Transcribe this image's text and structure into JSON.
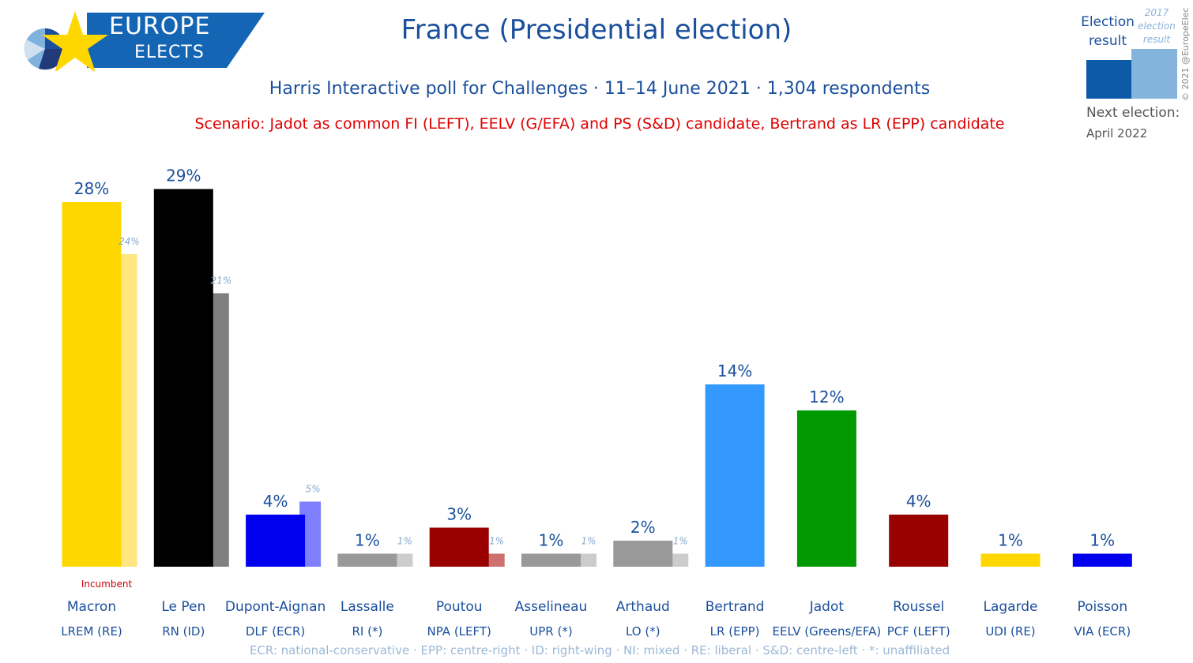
{
  "header": {
    "logo_line1": "EUROPE",
    "logo_line2": "ELECTS",
    "title": "France (Presidential election)",
    "subtitle": "Harris Interactive poll for Challenges · 11–14 June 2021 · 1,304 respondents",
    "scenario": "Scenario: Jadot as common FI (LEFT), EELV (G/EFA) and PS (S&D) candidate, Bertrand as LR (EPP) candidate"
  },
  "legend": {
    "current_line1": "Election",
    "current_line2": "result",
    "previous_line1": "2017",
    "previous_line2": "election",
    "previous_line3": "result",
    "current_color": "#0b5aa8",
    "previous_color": "#84b3dc"
  },
  "next_election": {
    "label": "Next election:",
    "date": "April 2022"
  },
  "copyright": "© 2021 @EuropeElects",
  "footer": "ECR: national-conservative · EPP: centre-right · ID: right-wing · NI: mixed · RE: liberal · S&D: centre-left · *: unaffiliated",
  "chart_data": {
    "type": "bar",
    "title": "France (Presidential election)",
    "ylim": [
      0,
      30
    ],
    "categories": [
      "Macron",
      "Le Pen",
      "Dupont-Aignan",
      "Lassalle",
      "Poutou",
      "Asselineau",
      "Arthaud",
      "Bertrand",
      "Jadot",
      "Roussel",
      "Lagarde",
      "Poisson"
    ],
    "parties": [
      "LREM (RE)",
      "RN (ID)",
      "DLF (ECR)",
      "RI (*)",
      "NPA (LEFT)",
      "UPR (*)",
      "LO (*)",
      "LR (EPP)",
      "EELV (Greens/EFA)",
      "PCF (LEFT)",
      "UDI (RE)",
      "VIA (ECR)"
    ],
    "series": [
      {
        "values": [
          28,
          29,
          4,
          1,
          3,
          1,
          2,
          14,
          12,
          4,
          1,
          1
        ]
      },
      {
        "values": [
          24,
          21,
          5,
          1,
          1,
          1,
          1,
          null,
          null,
          null,
          null,
          null
        ]
      }
    ],
    "value_labels": [
      "28%",
      "29%",
      "4%",
      "1%",
      "3%",
      "1%",
      "2%",
      "14%",
      "12%",
      "4%",
      "1%",
      "1%"
    ],
    "previous_labels": [
      "24%",
      "21%",
      "5%",
      "1%",
      "1%",
      "1%",
      "1%",
      "",
      "",
      "",
      "",
      ""
    ],
    "colors": [
      "#ffd700",
      "#000000",
      "#0000ee",
      "#999999",
      "#990000",
      "#999999",
      "#999999",
      "#3399ff",
      "#009900",
      "#990000",
      "#ffd700",
      "#0000ee"
    ],
    "previous_colors": [
      "#ffe680",
      "#808080",
      "#8080ff",
      "#cccccc",
      "#cc7070",
      "#cccccc",
      "#cccccc",
      "",
      "",
      "",
      "",
      ""
    ],
    "annotation": "Incumbent"
  }
}
